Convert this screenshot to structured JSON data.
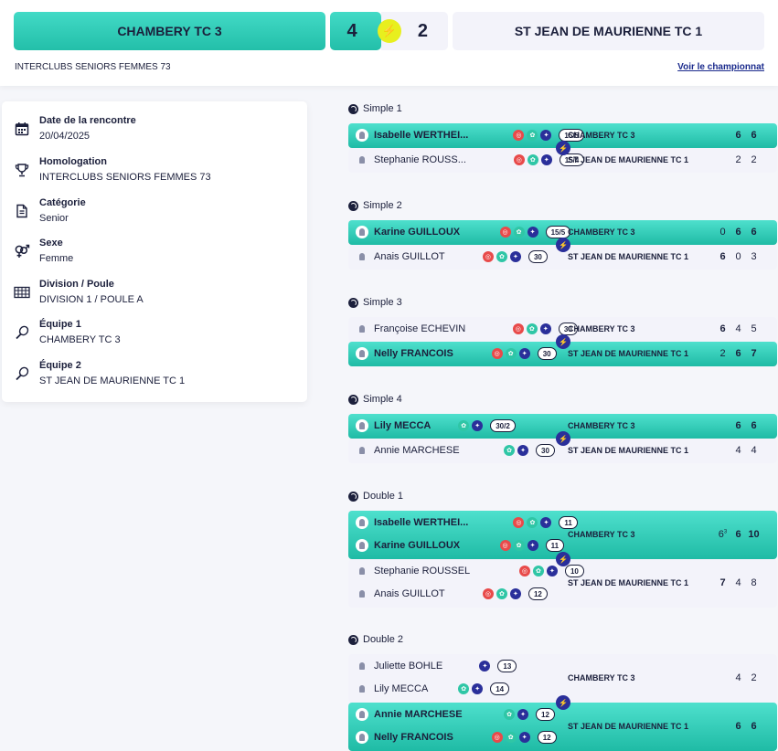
{
  "header": {
    "home_team": "CHAMBERY TC 3",
    "home_score": "4",
    "away_score": "2",
    "away_team": "ST JEAN DE MAURIENNE TC 1",
    "competition": "INTERCLUBS SENIORS FEMMES 73",
    "championship_link": "Voir le championnat",
    "bolt": "⚡"
  },
  "info": [
    {
      "icon": "calendar-icon",
      "label": "Date de la rencontre",
      "value": "20/04/2025"
    },
    {
      "icon": "trophy-icon",
      "label": "Homologation",
      "value": "INTERCLUBS SENIORS FEMMES 73"
    },
    {
      "icon": "document-icon",
      "label": "Catégorie",
      "value": "Senior"
    },
    {
      "icon": "gender-icon",
      "label": "Sexe",
      "value": "Femme"
    },
    {
      "icon": "grid-icon",
      "label": "Division / Poule",
      "value": "DIVISION 1 / POULE A"
    },
    {
      "icon": "racket-icon",
      "label": "Équipe 1",
      "value": "CHAMBERY TC 3"
    },
    {
      "icon": "racket-icon",
      "label": "Équipe 2",
      "value": "ST JEAN DE MAURIENNE TC 1"
    }
  ],
  "matches": [
    {
      "title": "Simple 1",
      "top": {
        "win": true,
        "team": "CHAMBERY TC 3",
        "players": [
          {
            "name": "Isabelle WERTHEI...",
            "badges": [
              "r",
              "g",
              "b"
            ],
            "rank": "15/5"
          }
        ],
        "scores": [
          {
            "v": "6",
            "b": true
          },
          {
            "v": "6",
            "b": true
          }
        ]
      },
      "bottom": {
        "win": false,
        "team": "ST JEAN DE MAURIENNE TC 1",
        "players": [
          {
            "name": "Stephanie ROUSS...",
            "badges": [
              "r",
              "g",
              "b"
            ],
            "rank": "15/4"
          }
        ],
        "scores": [
          {
            "v": "2",
            "b": false
          },
          {
            "v": "2",
            "b": false
          }
        ]
      }
    },
    {
      "title": "Simple 2",
      "top": {
        "win": true,
        "team": "CHAMBERY TC 3",
        "players": [
          {
            "name": "Karine GUILLOUX",
            "badges": [
              "r",
              "g",
              "b"
            ],
            "rank": "15/5"
          }
        ],
        "scores": [
          {
            "v": "0",
            "b": false
          },
          {
            "v": "6",
            "b": true
          },
          {
            "v": "6",
            "b": true
          }
        ]
      },
      "bottom": {
        "win": false,
        "team": "ST JEAN DE MAURIENNE TC 1",
        "players": [
          {
            "name": "Anais GUILLOT",
            "badges": [
              "r",
              "g",
              "b"
            ],
            "rank": "30"
          }
        ],
        "scores": [
          {
            "v": "6",
            "b": true
          },
          {
            "v": "0",
            "b": false
          },
          {
            "v": "3",
            "b": false
          }
        ]
      }
    },
    {
      "title": "Simple 3",
      "top": {
        "win": false,
        "team": "CHAMBERY TC 3",
        "players": [
          {
            "name": "Françoise ECHEVIN",
            "badges": [
              "r",
              "g",
              "b"
            ],
            "rank": "30"
          }
        ],
        "scores": [
          {
            "v": "6",
            "b": true
          },
          {
            "v": "4",
            "b": false
          },
          {
            "v": "5",
            "b": false
          }
        ]
      },
      "bottom": {
        "win": true,
        "team": "ST JEAN DE MAURIENNE TC 1",
        "players": [
          {
            "name": "Nelly FRANCOIS",
            "badges": [
              "r",
              "g",
              "b"
            ],
            "rank": "30"
          }
        ],
        "scores": [
          {
            "v": "2",
            "b": false
          },
          {
            "v": "6",
            "b": true
          },
          {
            "v": "7",
            "b": true
          }
        ]
      }
    },
    {
      "title": "Simple 4",
      "top": {
        "win": true,
        "team": "CHAMBERY TC 3",
        "players": [
          {
            "name": "Lily MECCA",
            "badges": [
              "g",
              "b"
            ],
            "rank": "30/2"
          }
        ],
        "scores": [
          {
            "v": "6",
            "b": true
          },
          {
            "v": "6",
            "b": true
          }
        ]
      },
      "bottom": {
        "win": false,
        "team": "ST JEAN DE MAURIENNE TC 1",
        "players": [
          {
            "name": "Annie MARCHESE",
            "badges": [
              "g",
              "b"
            ],
            "rank": "30"
          }
        ],
        "scores": [
          {
            "v": "4",
            "b": false
          },
          {
            "v": "4",
            "b": false
          }
        ]
      }
    },
    {
      "title": "Double 1",
      "top": {
        "win": true,
        "team": "CHAMBERY TC 3",
        "players": [
          {
            "name": "Isabelle WERTHEI...",
            "badges": [
              "r",
              "g",
              "b"
            ],
            "rank": "11"
          },
          {
            "name": "Karine GUILLOUX",
            "badges": [
              "r",
              "g",
              "b"
            ],
            "rank": "11"
          }
        ],
        "scores": [
          {
            "v": "6",
            "b": false,
            "sup": "3"
          },
          {
            "v": "6",
            "b": true
          },
          {
            "v": "10",
            "b": true
          }
        ]
      },
      "bottom": {
        "win": false,
        "team": "ST JEAN DE MAURIENNE TC 1",
        "players": [
          {
            "name": "Stephanie ROUSSEL",
            "badges": [
              "r",
              "g",
              "b"
            ],
            "rank": "10"
          },
          {
            "name": "Anais GUILLOT",
            "badges": [
              "r",
              "g",
              "b"
            ],
            "rank": "12"
          }
        ],
        "scores": [
          {
            "v": "7",
            "b": true
          },
          {
            "v": "4",
            "b": false
          },
          {
            "v": "8",
            "b": false
          }
        ]
      }
    },
    {
      "title": "Double 2",
      "top": {
        "win": false,
        "team": "CHAMBERY TC 3",
        "players": [
          {
            "name": "Juliette BOHLE",
            "badges": [
              "b"
            ],
            "rank": "13"
          },
          {
            "name": "Lily MECCA",
            "badges": [
              "g",
              "b"
            ],
            "rank": "14"
          }
        ],
        "scores": [
          {
            "v": "4",
            "b": false
          },
          {
            "v": "2",
            "b": false
          }
        ]
      },
      "bottom": {
        "win": true,
        "team": "ST JEAN DE MAURIENNE TC 1",
        "players": [
          {
            "name": "Annie MARCHESE",
            "badges": [
              "g",
              "b"
            ],
            "rank": "12"
          },
          {
            "name": "Nelly FRANCOIS",
            "badges": [
              "r",
              "g",
              "b"
            ],
            "rank": "12"
          }
        ],
        "scores": [
          {
            "v": "6",
            "b": true
          },
          {
            "v": "6",
            "b": true
          }
        ]
      }
    }
  ]
}
